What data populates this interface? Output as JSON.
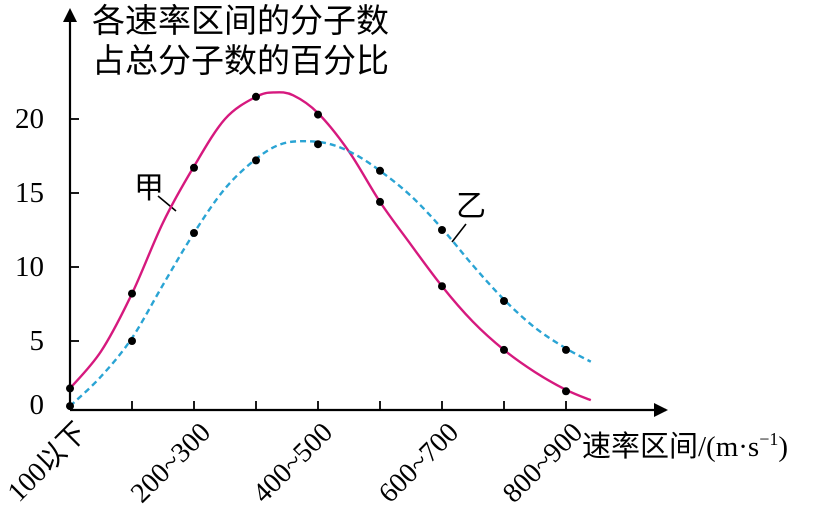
{
  "chart_data": {
    "type": "line",
    "ylabel_lines": [
      "各速率区间的分子数",
      "占总分子数的百分比"
    ],
    "xlabel": "速率区间/(m·s",
    "xlabel_sup": "−1",
    "xlabel_close": ")",
    "y_ticks": [
      "0",
      "5",
      "10",
      "15",
      "20"
    ],
    "x_tick_labels": [
      "100以下",
      "200~300",
      "400~500",
      "600~700",
      "800~900"
    ],
    "grid": false,
    "series": [
      {
        "name": "甲",
        "color": "#d6197e",
        "style": "solid",
        "points": [
          {
            "x": 0,
            "y": 1.8
          },
          {
            "x": 1,
            "y": 8.2
          },
          {
            "x": 2,
            "y": 16.7
          },
          {
            "x": 3,
            "y": 21.5
          },
          {
            "x": 4,
            "y": 20.3
          },
          {
            "x": 5,
            "y": 14.4
          },
          {
            "x": 6,
            "y": 8.7
          },
          {
            "x": 7,
            "y": 4.4
          },
          {
            "x": 8,
            "y": 1.6
          }
        ],
        "curve": [
          {
            "x": 0,
            "y": 1.8
          },
          {
            "x": 0.5,
            "y": 4.3
          },
          {
            "x": 1,
            "y": 8.2
          },
          {
            "x": 1.5,
            "y": 13.0
          },
          {
            "x": 2,
            "y": 16.8
          },
          {
            "x": 2.5,
            "y": 20.0
          },
          {
            "x": 3,
            "y": 21.5
          },
          {
            "x": 3.3,
            "y": 21.8
          },
          {
            "x": 3.6,
            "y": 21.6
          },
          {
            "x": 4,
            "y": 20.4
          },
          {
            "x": 4.5,
            "y": 17.8
          },
          {
            "x": 5,
            "y": 14.4
          },
          {
            "x": 5.5,
            "y": 11.5
          },
          {
            "x": 6,
            "y": 8.7
          },
          {
            "x": 6.5,
            "y": 6.3
          },
          {
            "x": 7,
            "y": 4.4
          },
          {
            "x": 7.5,
            "y": 2.9
          },
          {
            "x": 8,
            "y": 1.7
          },
          {
            "x": 8.4,
            "y": 1.0
          }
        ]
      },
      {
        "name": "乙",
        "color": "#2aa4d4",
        "style": "dashed",
        "points": [
          {
            "x": 0,
            "y": 0.6
          },
          {
            "x": 1,
            "y": 5.0
          },
          {
            "x": 2,
            "y": 12.3
          },
          {
            "x": 3,
            "y": 17.2
          },
          {
            "x": 4,
            "y": 18.3
          },
          {
            "x": 5,
            "y": 16.5
          },
          {
            "x": 6,
            "y": 12.5
          },
          {
            "x": 7,
            "y": 7.7
          },
          {
            "x": 8,
            "y": 4.4
          }
        ],
        "curve": [
          {
            "x": 0,
            "y": 0.6
          },
          {
            "x": 0.5,
            "y": 2.6
          },
          {
            "x": 1,
            "y": 5.2
          },
          {
            "x": 1.5,
            "y": 8.8
          },
          {
            "x": 2,
            "y": 12.3
          },
          {
            "x": 2.5,
            "y": 15.3
          },
          {
            "x": 3,
            "y": 17.3
          },
          {
            "x": 3.4,
            "y": 18.3
          },
          {
            "x": 3.8,
            "y": 18.5
          },
          {
            "x": 4.2,
            "y": 18.3
          },
          {
            "x": 4.6,
            "y": 17.6
          },
          {
            "x": 5,
            "y": 16.5
          },
          {
            "x": 5.5,
            "y": 14.8
          },
          {
            "x": 6,
            "y": 12.6
          },
          {
            "x": 6.5,
            "y": 10.1
          },
          {
            "x": 7,
            "y": 7.8
          },
          {
            "x": 7.5,
            "y": 5.9
          },
          {
            "x": 8,
            "y": 4.5
          },
          {
            "x": 8.4,
            "y": 3.6
          }
        ]
      }
    ]
  }
}
